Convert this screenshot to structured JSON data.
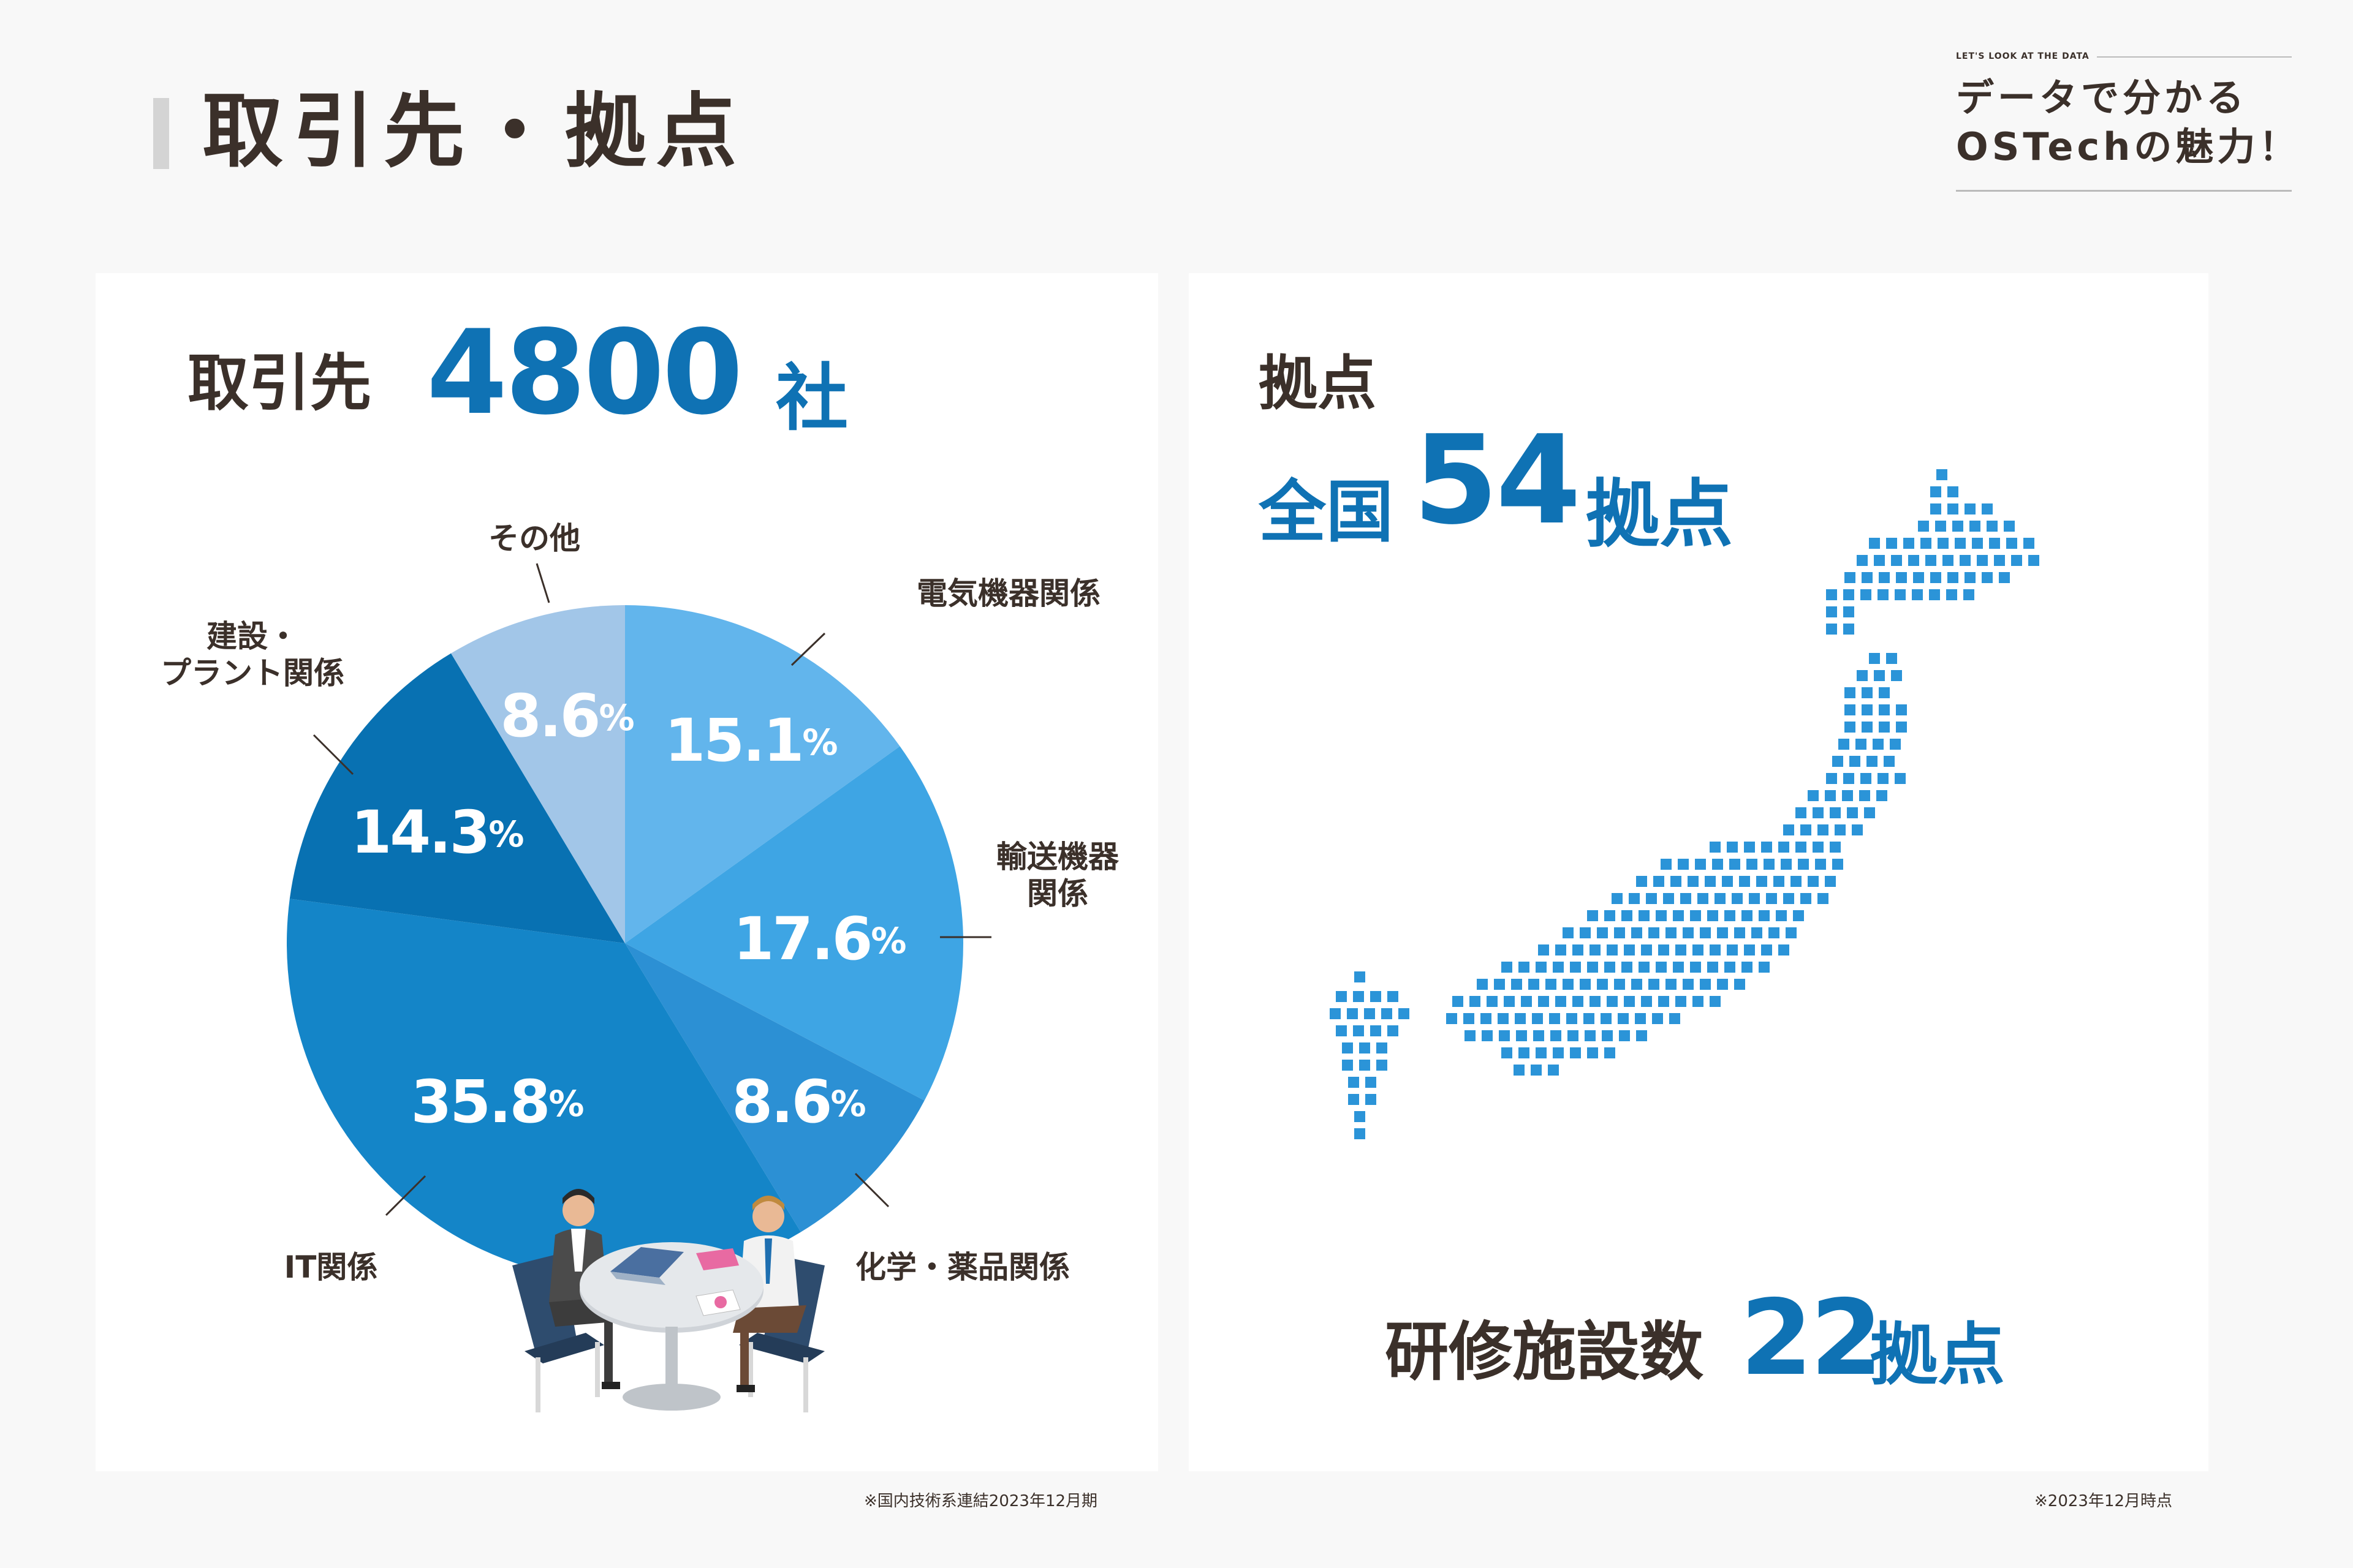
{
  "page": {
    "title": "取引先・拠点",
    "brand_tag": "LET'S LOOK AT THE DATA",
    "brand_line1": "データで分かる",
    "brand_line2": "OSTechの魅力！"
  },
  "clients": {
    "label": "取引先",
    "count": "4800",
    "unit": "社",
    "footnote": "※国内技術系連結2023年12月期"
  },
  "sites": {
    "label": "拠点",
    "prefix": "全国",
    "count": "54",
    "unit": "拠点",
    "training_label": "研修施設数",
    "training_count": "22",
    "training_unit": "拠点",
    "footnote": "※2023年12月時点",
    "map_icon": "japan-dot-map-icon"
  },
  "illustration": "business-meeting-icon",
  "colors": {
    "accent": "#0f72b4",
    "text": "#3b302a",
    "panel": "#ffffff",
    "background": "#f8f8f8"
  },
  "chart_data": {
    "type": "pie",
    "unit": "%",
    "slices": [
      {
        "label": "電気機器関係",
        "value": 15.1,
        "value_text": "15.1",
        "color": "#62b5ec"
      },
      {
        "label": "輸送機器関係",
        "value": 17.6,
        "value_text": "17.6",
        "color": "#3ea5e4",
        "label_lines": [
          "輸送機器",
          "関係"
        ]
      },
      {
        "label": "化学・薬品関係",
        "value": 8.6,
        "value_text": "8.6",
        "color": "#2c90d4"
      },
      {
        "label": "IT関係",
        "value": 35.8,
        "value_text": "35.8",
        "color": "#1485c8"
      },
      {
        "label": "建設・プラント関係",
        "value": 14.3,
        "value_text": "14.3",
        "color": "#0871b2",
        "label_lines": [
          "建設・",
          "プラント関係"
        ]
      },
      {
        "label": "その他",
        "value": 8.6,
        "value_text": "8.6",
        "color": "#a2c6e8"
      }
    ]
  }
}
